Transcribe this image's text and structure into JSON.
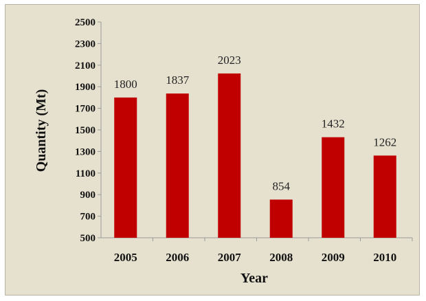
{
  "chart_data": {
    "type": "bar",
    "title": "",
    "xlabel": "Year",
    "ylabel": "Quantity (Mt)",
    "categories": [
      "2005",
      "2006",
      "2007",
      "2008",
      "2009",
      "2010"
    ],
    "values": [
      1800,
      1837,
      2023,
      854,
      1432,
      1262
    ],
    "data_labels": [
      "1800",
      "1837",
      "2023",
      "854",
      "1432",
      "1262"
    ],
    "ylim": [
      500,
      2500
    ],
    "yticks": [
      "500",
      "700",
      "900",
      "1100",
      "1300",
      "1500",
      "1700",
      "1900",
      "2100",
      "2300",
      "2500"
    ],
    "grid": false,
    "legend": "none",
    "colors": {
      "bar": "#c00000",
      "background": "#e6e1cf",
      "axis": "#9a9a9a"
    }
  }
}
